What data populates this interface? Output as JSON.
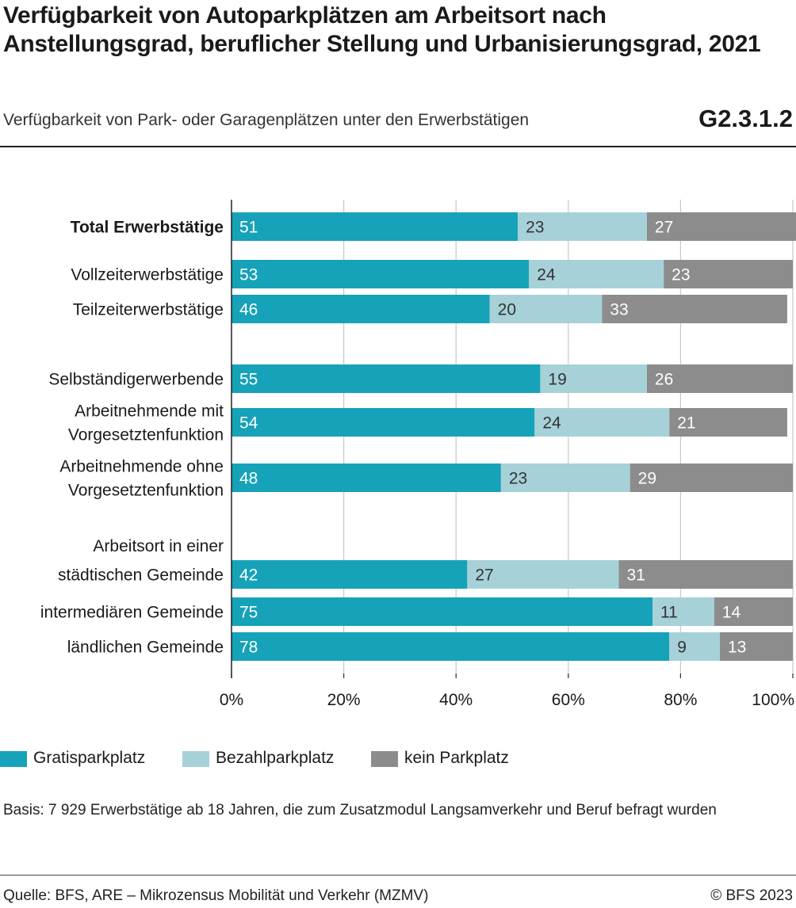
{
  "header": {
    "title": "Verfügbarkeit von Autoparkplätzen am Arbeitsort nach Anstellungsgrad, beruflicher Stellung und Urbanisierungsgrad, 2021",
    "subtitle": "Verfügbarkeit von Park- oder Garagenplätzen unter den Erwerbstätigen",
    "code": "G2.3.1.2"
  },
  "chart_data": {
    "type": "bar",
    "orientation": "horizontal",
    "stacked": true,
    "xlim": [
      0,
      100
    ],
    "x_ticks": [
      "0%",
      "20%",
      "40%",
      "60%",
      "80%",
      "100%"
    ],
    "grid": true,
    "legend_position": "bottom",
    "group_heading": "Arbeitsort in einer",
    "categories": [
      {
        "label": "Total Erwerbstätige",
        "bold": true
      },
      {
        "label": "Vollzeiterwerbstätige"
      },
      {
        "label": "Teilzeiterwerbstätige"
      },
      {
        "label": "Selbständigerwerbende"
      },
      {
        "label": [
          "Arbeitnehmende mit",
          "Vorgesetztenfunktion"
        ]
      },
      {
        "label": [
          "Arbeitnehmende ohne",
          "Vorgesetztenfunktion"
        ]
      },
      {
        "label": "städtischen Gemeinde"
      },
      {
        "label": "intermediären Gemeinde"
      },
      {
        "label": "ländlichen Gemeinde"
      }
    ],
    "series": [
      {
        "name": "Gratisparkplatz",
        "color": "#16a2b8",
        "label_color": "#ffffff",
        "values": [
          51,
          53,
          46,
          55,
          54,
          48,
          42,
          75,
          78
        ]
      },
      {
        "name": "Bezahlparkplatz",
        "color": "#a7d1d8",
        "label_color": "#333333",
        "values": [
          23,
          24,
          20,
          19,
          24,
          23,
          27,
          11,
          9
        ]
      },
      {
        "name": "kein Parkplatz",
        "color": "#8c8c8c",
        "label_color": "#ffffff",
        "values": [
          27,
          23,
          33,
          26,
          21,
          29,
          31,
          14,
          13
        ]
      }
    ]
  },
  "legend": [
    {
      "label": "Gratisparkplatz",
      "color": "#16a2b8"
    },
    {
      "label": "Bezahlparkplatz",
      "color": "#a7d1d8"
    },
    {
      "label": "kein Parkplatz",
      "color": "#8c8c8c"
    }
  ],
  "footer": {
    "note": "Basis: 7 929 Erwerbstätige ab 18 Jahren, die zum Zusatzmodul Langsamverkehr und Beruf befragt wurden",
    "source": "Quelle: BFS, ARE – Mikrozensus Mobilität und Verkehr (MZMV)",
    "copyright": "© BFS 2023"
  }
}
